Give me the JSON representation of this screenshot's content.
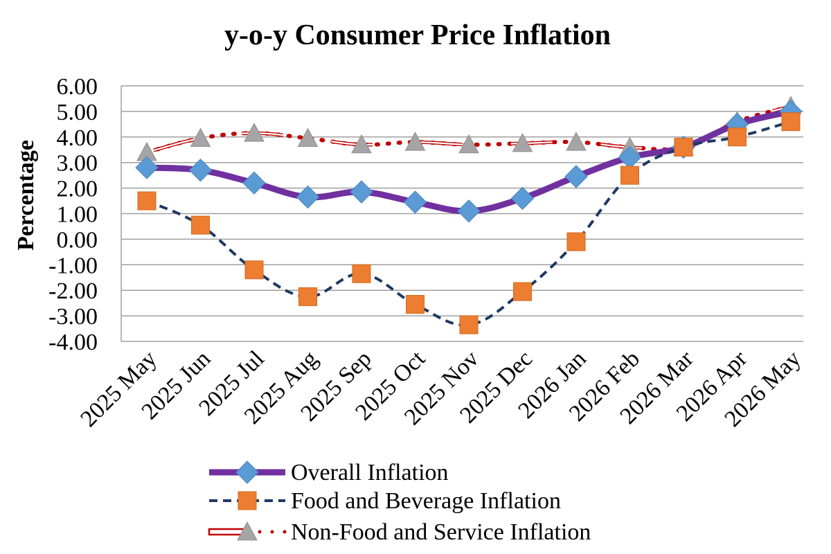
{
  "chart_data": {
    "type": "line",
    "title": "y-o-y Consumer Price Inflation",
    "xlabel": "",
    "ylabel": "Percentage",
    "ylim": [
      -4,
      6
    ],
    "yticks": [
      "6.00",
      "5.00",
      "4.00",
      "3.00",
      "2.00",
      "1.00",
      "0.00",
      "-1.00",
      "-2.00",
      "-3.00",
      "-4.00"
    ],
    "grid": true,
    "legend_position": "bottom",
    "categories": [
      "2025 May",
      "2025 Jun",
      "2025 Jul",
      "2025 Aug",
      "2025 Sep",
      "2025 Oct",
      "2025 Nov",
      "2025 Dec",
      "2026 Jan",
      "2026 Feb",
      "2026 Mar",
      "2026 Apr",
      "2026 May"
    ],
    "series": [
      {
        "name": "Overall Inflation",
        "values": [
          2.8,
          2.7,
          2.2,
          1.65,
          1.85,
          1.45,
          1.1,
          1.6,
          2.45,
          3.2,
          3.6,
          4.5,
          5.0
        ],
        "line_color": "#7030A0",
        "marker": "diamond",
        "marker_color": "#5B9BD5",
        "line_style": "solid"
      },
      {
        "name": "Food and Beverage Inflation",
        "values": [
          1.5,
          0.55,
          -1.2,
          -2.25,
          -1.35,
          -2.55,
          -3.35,
          -2.05,
          -0.1,
          2.5,
          3.6,
          4.0,
          4.6
        ],
        "line_color": "#1F3864",
        "marker": "square",
        "marker_color": "#ED7D31",
        "line_style": "dashed"
      },
      {
        "name": "Non-Food and Service Inflation",
        "values": [
          3.4,
          3.95,
          4.15,
          3.95,
          3.7,
          3.8,
          3.7,
          3.75,
          3.8,
          3.6,
          3.6,
          4.6,
          5.2
        ],
        "line_color": "#C00000",
        "marker": "triangle",
        "marker_color": "#A5A5A5",
        "line_style": "dotted"
      }
    ]
  }
}
